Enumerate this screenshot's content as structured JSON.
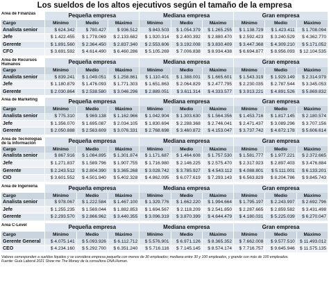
{
  "title": "Los sueldos de los altos ejecutivos según el tamaño de la empresa",
  "column_groups": [
    "Pequeña empresa",
    "Mediana empresa",
    "Gran empresa"
  ],
  "columns": [
    "Cargo",
    "Mínimo",
    "Medio",
    "Máximo"
  ],
  "sections": [
    {
      "area": "Área de Finanzas",
      "rows": [
        [
          "Analista senior",
          "$ 624.342",
          "$ 780.427",
          "$ 936.512",
          "$ 843.503",
          "$ 1.054.379",
          "$ 1.265.255",
          "$ 1.138.729",
          "$ 1.423.411",
          "$ 1.708.094"
        ],
        [
          "Jefe",
          "$ 1.422.455",
          "$ 1.778.069",
          "$ 2.133.682",
          "$ 1.920.314",
          "$ 2.400.392",
          "$ 2.880.470",
          "$ 2.592.423",
          "$ 3.240.529",
          "$ 4.362.770"
        ],
        [
          "Gerente",
          "$ 1.891.560",
          "$ 2.364.450",
          "$ 2.837.340",
          "$ 2.553.606",
          "$ 3.192.008",
          "$ 3.830.409",
          "$ 3.447.368",
          "$ 4.309.210",
          "$ 5.171.052"
        ],
        [
          "CFO",
          "$ 3.691.592",
          "$ 4.614.490",
          "$ 6.460.286",
          "$ 5.105.269",
          "$ 7.006.838",
          "$ 8.934.438",
          "$ 6.694.877",
          "$ 8.956.093",
          "$ 12.104.535"
        ]
      ]
    },
    {
      "area": "Área de Recursos Humanos",
      "rows": [
        [
          "Analista senior",
          "$ 839.241",
          "$ 1.049.051",
          "$ 1.258.861",
          "$ 1.110.401",
          "$ 1.388.001",
          "$ 1.665.601",
          "$ 1.543.319",
          "$ 1.929.149",
          "$ 2.314.979"
        ],
        [
          "Jefe",
          "$ 1.180.879",
          "$ 1.476.093",
          "$ 1.771.303",
          "$ 1.651.863",
          "$ 2.064.829",
          "$ 2.477.795",
          "$ 2.230.035",
          "$ 2.787.544",
          "$ 3.345.053"
        ],
        [
          "Gerente",
          "$ 2.030.864",
          "$ 2.538.580",
          "$ 3.046.296",
          "$ 2.889.051",
          "$ 3.611.314",
          "$ 4.333.577",
          "$ 3.913.221",
          "$ 4.891.526",
          "$ 5.869.832"
        ]
      ]
    },
    {
      "area": "Área de Marketing",
      "rows": [
        [
          "Analista senior",
          "$ 775.310",
          "$ 969.138",
          "$ 1.162.966",
          "$ 1.042.904",
          "$ 1.303.630",
          "$ 1.564.356",
          "$ 1.453.716",
          "$ 1.817.145",
          "$ 2.180.574"
        ],
        [
          "Jefe",
          "$ 1.356.070",
          "$ 1.695.087",
          "$ 2.034.105",
          "$ 1.830.694",
          "$ 2.288.368",
          "$ 2.746.041",
          "$ 2.471.437",
          "$ 3.089.296",
          "$ 3.707.156"
        ],
        [
          "Gerente",
          "$ 2.050.888",
          "$ 2.563.609",
          "$ 3.076.331",
          "$ 2.768.698",
          "$ 3.460.872",
          "$ 4.153.047",
          "$ 3.737.742",
          "$ 4.672.178",
          "$ 5.606.614"
        ]
      ]
    },
    {
      "area": "Área de Tecnologías de la información",
      "rows": [
        [
          "Analista senior",
          "$ 867.916",
          "$ 1.084.895",
          "$ 1.301.874",
          "$ 1.171.687",
          "$ 1.464.608",
          "$ 1.757.530",
          "$ 1.581.777",
          "$ 1.977.221",
          "$ 2.372.665"
        ],
        [
          "Jefe",
          "$ 1.271.837",
          "$ 1.589.796",
          "$ 1.907.755",
          "$ 1.716.980",
          "$ 2.146.225",
          "$ 2.575.470",
          "$ 2.317.923",
          "$ 2.897.403",
          "$ 3.476.884"
        ],
        [
          "Gerente",
          "$ 2.243.512",
          "$ 2.804.390",
          "$ 3.365.268",
          "$ 3.028.742",
          "$ 3.785.927",
          "$ 4.543.112",
          "$ 4.088.801",
          "$ 5.111.001",
          "$ 6.133.201"
        ],
        [
          "CIO",
          "$ 3.601.552",
          "$ 4.501.940",
          "$ 5.402.328",
          "$ 4.862.095",
          "$ 6.077.619",
          "$ 7.293.143",
          "$ 6.563.829",
          "$ 8.204.786",
          "$ 9.845.743"
        ]
      ]
    },
    {
      "area": "Área de Ingeniería",
      "rows": [
        [
          "Analista senior",
          "$ 978.067",
          "$ 1.222.584",
          "$ 1.467.100",
          "$ 1.329.776",
          "$ 1.662.220",
          "$ 1.994.664",
          "$ 1.795.197",
          "$ 2.243.997",
          "$ 2.692.796"
        ],
        [
          "Jefe",
          "$ 1.255.235",
          "$ 1.569.044",
          "$ 1.882.853",
          "$ 1.694.567",
          "$ 2.118.209",
          "$ 2.541.850",
          "$ 2.287.665",
          "$ 2.859.582",
          "$ 3.431.498"
        ],
        [
          "Gerente",
          "$ 2.293.570",
          "$ 2.866.962",
          "$ 3.440.355",
          "$ 3.096.319",
          "$ 3.870.399",
          "$ 4.644.479",
          "$ 4.180.031",
          "$ 5.225.039",
          "$ 6.270.047"
        ]
      ]
    },
    {
      "area": "Área C-Level",
      "rows": [
        [
          "Gerente General",
          "$ 4.075.141",
          "$ 5.093.926",
          "$ 6.112.712",
          "$ 5.576.901",
          "$ 6.971.126",
          "$ 8.365.352",
          "$ 7.662.008",
          "$ 9.577.510",
          "$ 11.493.012"
        ],
        [
          "CEO",
          "$ 4.234.160",
          "$ 5.292.700",
          "$ 6.351.240",
          "$ 5.716.116",
          "$ 7.145.145",
          "$ 8.574.174",
          "$ 7.716.757",
          "$ 9.645.946",
          "$ 11.575.135"
        ]
      ]
    }
  ],
  "note": "Valores corresponden a sueldos líquidos y se considera empresa pequeña con menos de 30 empleados; mediana entre 30 y 100 empleados, y grande con más de 100 empleados.",
  "source": "Fuente: Guía Laboral 2021 Show me The Money de la consultora DNA Human."
}
